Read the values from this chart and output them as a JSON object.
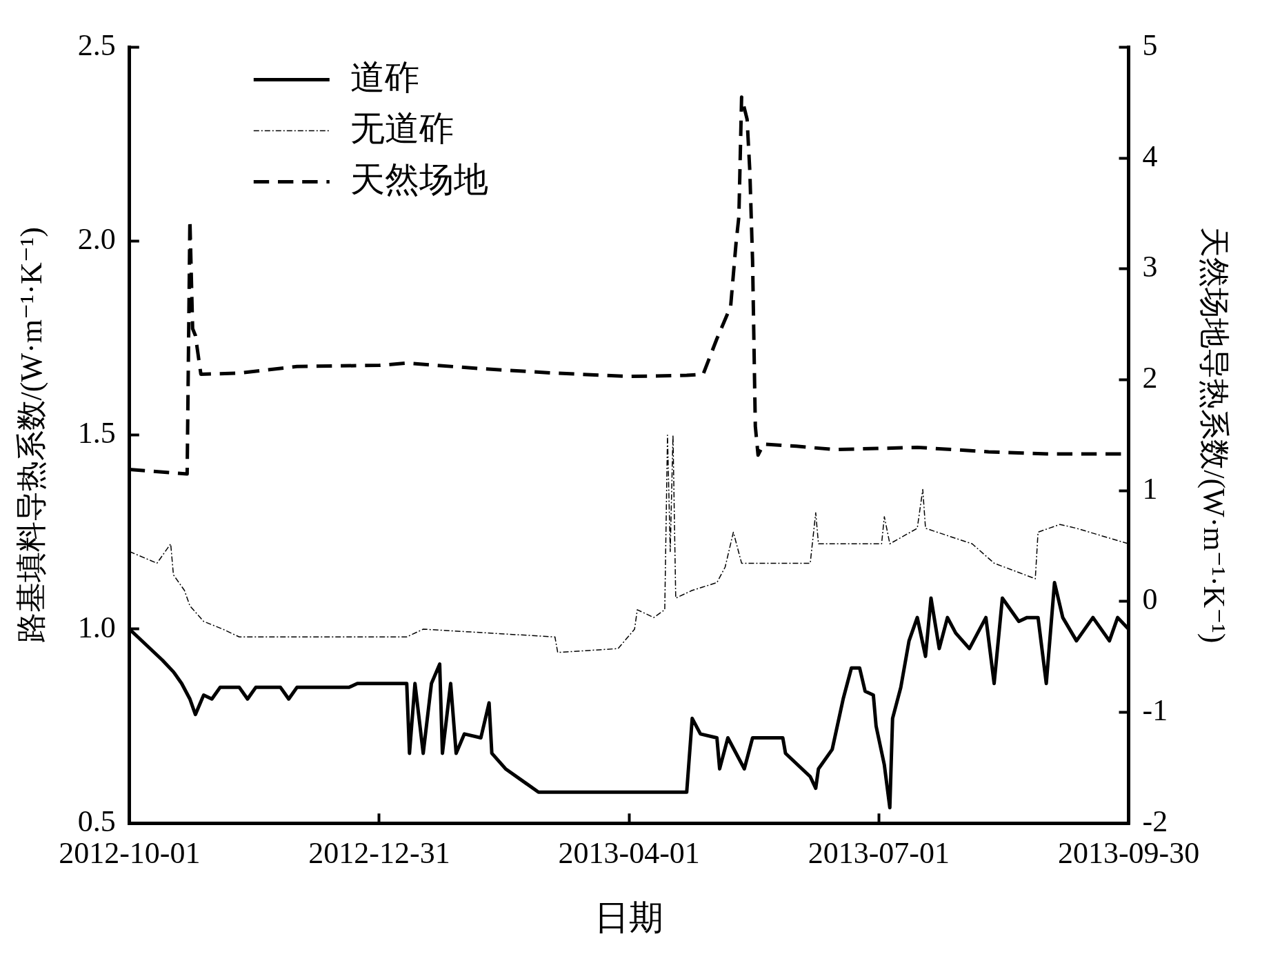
{
  "chart_data": {
    "type": "line",
    "xlabel": "日期",
    "ylabel": "路基填料导热系数/(W·m⁻¹·K⁻¹)",
    "y2label": "天然场地导热系数/(W·m⁻¹·K⁻¹)",
    "xlim": [
      "2012-10-01",
      "2013-09-30"
    ],
    "xticks": [
      "2012-10-01",
      "2012-12-31",
      "2013-04-01",
      "2013-07-01",
      "2013-09-30"
    ],
    "ylim": [
      0.5,
      2.5
    ],
    "yticks": [
      0.5,
      {
        "value": 1,
        "label": "1.0"
      },
      1.5,
      {
        "value": 2,
        "label": "2.0"
      },
      2.5
    ],
    "y2lim": [
      -2,
      5
    ],
    "y2ticks": [
      -2,
      -1,
      0,
      1,
      2,
      3,
      4,
      5
    ],
    "grid": false,
    "legend": "top left",
    "marker": "none",
    "series": [
      {
        "name": "道砟",
        "color": "#000000",
        "line_style": "solid",
        "x": [
          "2012-10-01",
          "2012-10-04",
          "2012-10-07",
          "2012-10-13",
          "2012-10-17",
          "2012-10-20",
          "2012-10-23",
          "2012-10-25",
          "2012-10-28",
          "2012-10-31",
          "2012-11-03",
          "2012-11-10",
          "2012-11-13",
          "2012-11-16",
          "2012-11-25",
          "2012-11-28",
          "2012-12-01",
          "2012-12-20",
          "2012-12-23",
          "2013-01-10",
          "2013-01-11",
          "2013-01-13",
          "2013-01-16",
          "2013-01-19",
          "2013-01-22",
          "2013-01-23",
          "2013-01-26",
          "2013-01-28",
          "2013-01-31",
          "2013-02-06",
          "2013-02-09",
          "2013-02-10",
          "2013-02-15",
          "2013-02-21",
          "2013-02-27",
          "2013-03-26",
          "2013-04-22",
          "2013-04-24",
          "2013-04-27",
          "2013-05-03",
          "2013-05-04",
          "2013-05-07",
          "2013-05-13",
          "2013-05-16",
          "2013-05-27",
          "2013-05-28",
          "2013-06-03",
          "2013-06-06",
          "2013-06-08",
          "2013-06-09",
          "2013-06-14",
          "2013-06-18",
          "2013-06-21",
          "2013-06-24",
          "2013-06-26",
          "2013-06-29",
          "2013-06-30",
          "2013-07-03",
          "2013-07-05",
          "2013-07-06",
          "2013-07-09",
          "2013-07-12",
          "2013-07-15",
          "2013-07-18",
          "2013-07-20",
          "2013-07-23",
          "2013-07-26",
          "2013-07-29",
          "2013-08-03",
          "2013-08-09",
          "2013-08-12",
          "2013-08-15",
          "2013-08-21",
          "2013-08-24",
          "2013-08-28",
          "2013-08-31",
          "2013-09-03",
          "2013-09-06",
          "2013-09-11",
          "2013-09-17",
          "2013-09-23",
          "2013-09-26",
          "2013-09-30"
        ],
        "values": [
          1.0,
          0.98,
          0.96,
          0.92,
          0.89,
          0.86,
          0.82,
          0.78,
          0.83,
          0.82,
          0.85,
          0.85,
          0.82,
          0.85,
          0.85,
          0.82,
          0.85,
          0.85,
          0.86,
          0.86,
          0.68,
          0.86,
          0.68,
          0.86,
          0.91,
          0.68,
          0.86,
          0.68,
          0.73,
          0.72,
          0.81,
          0.68,
          0.64,
          0.61,
          0.58,
          0.58,
          0.58,
          0.77,
          0.73,
          0.72,
          0.64,
          0.72,
          0.64,
          0.72,
          0.72,
          0.68,
          0.64,
          0.62,
          0.59,
          0.64,
          0.69,
          0.82,
          0.9,
          0.9,
          0.84,
          0.83,
          0.75,
          0.65,
          0.54,
          0.77,
          0.85,
          0.97,
          1.03,
          0.93,
          1.08,
          0.95,
          1.03,
          0.99,
          0.95,
          1.03,
          0.86,
          1.08,
          1.02,
          1.03,
          1.03,
          0.86,
          1.12,
          1.03,
          0.97,
          1.03,
          0.97,
          1.03,
          1.0
        ]
      },
      {
        "name": "无道砟",
        "color": "#000000",
        "line_style": "dashed",
        "x": [
          "2012-10-01",
          "2012-10-11",
          "2012-10-16",
          "2012-10-17",
          "2012-10-21",
          "2012-10-23",
          "2012-10-28",
          "2012-11-04",
          "2012-11-10",
          "2013-01-10",
          "2013-01-16",
          "2013-03-05",
          "2013-03-06",
          "2013-03-28",
          "2013-04-03",
          "2013-04-04",
          "2013-04-10",
          "2013-04-14",
          "2013-04-15",
          "2013-04-16",
          "2013-04-17",
          "2013-04-18",
          "2013-04-24",
          "2013-05-03",
          "2013-05-06",
          "2013-05-09",
          "2013-05-12",
          "2013-06-06",
          "2013-06-08",
          "2013-06-09",
          "2013-07-02",
          "2013-07-03",
          "2013-07-05",
          "2013-07-15",
          "2013-07-17",
          "2013-07-18",
          "2013-08-04",
          "2013-08-12",
          "2013-08-27",
          "2013-08-28",
          "2013-09-05",
          "2013-09-11",
          "2013-09-30"
        ],
        "values": [
          1.2,
          1.17,
          1.22,
          1.14,
          1.1,
          1.06,
          1.02,
          1.0,
          0.98,
          0.98,
          1.0,
          0.98,
          0.94,
          0.95,
          1.0,
          1.05,
          1.03,
          1.05,
          1.5,
          1.2,
          1.5,
          1.08,
          1.1,
          1.12,
          1.16,
          1.25,
          1.17,
          1.17,
          1.3,
          1.22,
          1.22,
          1.29,
          1.22,
          1.26,
          1.36,
          1.26,
          1.22,
          1.17,
          1.13,
          1.25,
          1.27,
          1.26,
          1.22
        ]
      },
      {
        "name": "天然场地",
        "color": "#000000",
        "line_style": "dashed",
        "axis": "y2",
        "x": [
          "2012-10-01",
          "2012-10-22",
          "2012-10-23",
          "2012-10-24",
          "2012-10-25",
          "2012-10-27",
          "2012-11-10",
          "2012-12-01",
          "2012-12-31",
          "2013-01-10",
          "2013-02-06",
          "2013-03-05",
          "2013-04-01",
          "2013-04-22",
          "2013-04-28",
          "2013-05-03",
          "2013-05-08",
          "2013-05-10",
          "2013-05-11",
          "2013-05-12",
          "2013-05-14",
          "2013-05-15",
          "2013-05-16",
          "2013-05-17",
          "2013-05-18",
          "2013-05-20",
          "2013-06-01",
          "2013-06-15",
          "2013-07-15",
          "2013-08-10",
          "2013-09-01",
          "2013-09-30"
        ],
        "values": [
          1.19,
          1.15,
          3.44,
          2.46,
          2.4,
          2.05,
          2.06,
          2.12,
          2.13,
          2.15,
          2.1,
          2.06,
          2.03,
          2.04,
          2.05,
          2.37,
          2.66,
          3.24,
          3.47,
          4.55,
          4.35,
          3.88,
          3.07,
          1.58,
          1.32,
          1.42,
          1.4,
          1.37,
          1.39,
          1.35,
          1.33,
          1.33
        ]
      }
    ]
  }
}
